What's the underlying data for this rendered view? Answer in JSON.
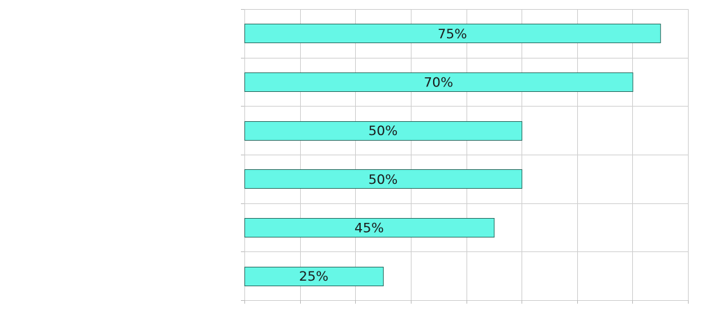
{
  "chart_data": {
    "type": "bar",
    "orientation": "horizontal",
    "title": "",
    "xlabel": "",
    "ylabel": "",
    "xlim": [
      0,
      80
    ],
    "grid": true,
    "legend": "none",
    "bar_color": "#66f7e6",
    "bar_edge_color": "#2f6f64",
    "categories": [
      "",
      "",
      "",
      "",
      "",
      ""
    ],
    "values": [
      75,
      70,
      50,
      50,
      45,
      25
    ],
    "data_labels": [
      "75%",
      "70%",
      "50%",
      "50%",
      "45%",
      "25%"
    ]
  }
}
